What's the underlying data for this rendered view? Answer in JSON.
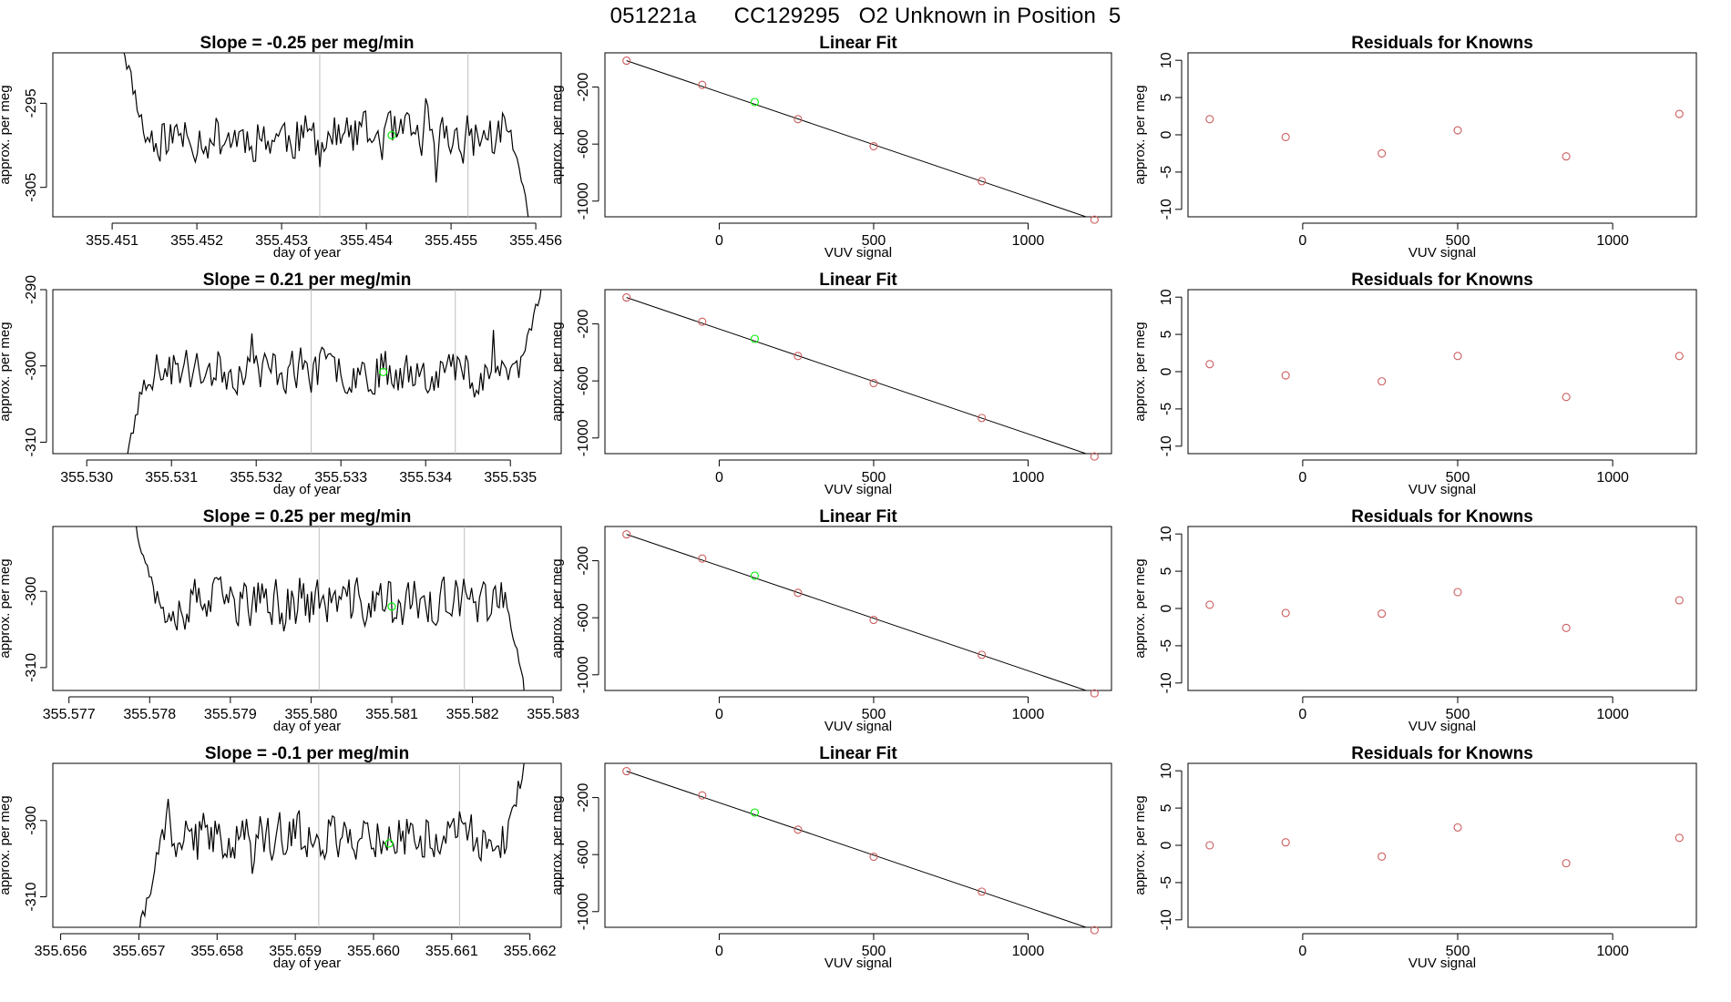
{
  "page_title": "051221a      CC129295   O2 Unknown in Position  5",
  "colors": {
    "known_point": "#cd5c5c",
    "unknown_point": "#00ee00",
    "trace": "#000000",
    "marker_line": "#bebebe",
    "frame": "#000000"
  },
  "chart_data": [
    {
      "type": "line",
      "row": 1,
      "title": "Slope =  -0.25  per meg/min",
      "xlabel": "day of year",
      "ylabel": "approx. per meg",
      "xlim": [
        355.4503,
        355.4563
      ],
      "ylim": [
        -308.5,
        -289
      ],
      "x_ticks": [
        "355.451",
        "355.452",
        "355.453",
        "355.454",
        "355.455",
        "355.456"
      ],
      "x_tick_values": [
        355.451,
        355.452,
        355.453,
        355.454,
        355.455,
        355.456
      ],
      "y_ticks": [
        "-295",
        "-305"
      ],
      "y_tick_values": [
        -295,
        -305
      ],
      "y_range_pts": [
        -301.5,
        -296
      ],
      "series": [
        {
          "x_start": 355.4511,
          "x_end": 355.456,
          "y_start": -287,
          "y_end": -312,
          "base": -299,
          "variation": 2.2,
          "points": 200,
          "seed": 11
        }
      ],
      "marker_lines_x": [
        355.45345,
        355.4552
      ],
      "unknown_point": {
        "x": 355.4543,
        "y": -298.8
      }
    },
    {
      "type": "line",
      "row": 2,
      "title": "Slope =  0.21  per meg/min",
      "xlabel": "day of year",
      "ylabel": "approx. per meg",
      "xlim": [
        355.5296,
        355.5356
      ],
      "ylim": [
        -311.5,
        -290
      ],
      "x_ticks": [
        "355.530",
        "355.531",
        "355.532",
        "355.533",
        "355.534",
        "355.535"
      ],
      "x_tick_values": [
        355.53,
        355.531,
        355.532,
        355.533,
        355.534,
        355.535
      ],
      "y_ticks": [
        "-290",
        "-300",
        "-310"
      ],
      "y_tick_values": [
        -290,
        -300,
        -310
      ],
      "y_range_pts": [
        -303,
        -297.5
      ],
      "series": [
        {
          "x_start": 355.5304,
          "x_end": 355.5354,
          "y_start": -316,
          "y_end": -288,
          "base": -300.5,
          "variation": 2.3,
          "points": 200,
          "seed": 23
        }
      ],
      "marker_lines_x": [
        355.53265,
        355.53435
      ],
      "unknown_point": {
        "x": 355.5335,
        "y": -300.8
      }
    },
    {
      "type": "line",
      "row": 3,
      "title": "Slope =  0.25  per meg/min",
      "xlabel": "day of year",
      "ylabel": "approx. per meg",
      "xlim": [
        355.5768,
        355.5831
      ],
      "ylim": [
        -313,
        -291.5
      ],
      "x_ticks": [
        "355.577",
        "355.578",
        "355.579",
        "355.580",
        "355.581",
        "355.582",
        "355.583"
      ],
      "x_tick_values": [
        355.577,
        355.578,
        355.579,
        355.58,
        355.581,
        355.582,
        355.583
      ],
      "y_ticks": [
        "-300",
        "-310"
      ],
      "y_tick_values": [
        -300,
        -310
      ],
      "y_range_pts": [
        -304.5,
        -298.5
      ],
      "series": [
        {
          "x_start": 355.5778,
          "x_end": 355.5827,
          "y_start": -290,
          "y_end": -316,
          "base": -301.5,
          "variation": 2.5,
          "points": 200,
          "seed": 37
        }
      ],
      "marker_lines_x": [
        355.5801,
        355.5819
      ],
      "unknown_point": {
        "x": 355.581,
        "y": -302.0
      }
    },
    {
      "type": "line",
      "row": 4,
      "title": "Slope =  -0.1  per meg/min",
      "xlabel": "day of year",
      "ylabel": "approx. per meg",
      "xlim": [
        355.6559,
        355.6624
      ],
      "ylim": [
        -314,
        -292.5
      ],
      "x_ticks": [
        "355.656",
        "355.657",
        "355.658",
        "355.659",
        "355.660",
        "355.661",
        "355.662"
      ],
      "x_tick_values": [
        355.656,
        355.657,
        355.658,
        355.659,
        355.66,
        355.661,
        355.662
      ],
      "y_ticks": [
        "-300",
        "-310"
      ],
      "y_tick_values": [
        -300,
        -310
      ],
      "y_range_pts": [
        -305,
        -299
      ],
      "series": [
        {
          "x_start": 355.657,
          "x_end": 355.662,
          "y_start": -315,
          "y_end": -290,
          "base": -302,
          "variation": 2.4,
          "points": 200,
          "seed": 41
        }
      ],
      "marker_lines_x": [
        355.6593,
        355.6611
      ],
      "unknown_point": {
        "x": 355.6602,
        "y": -303.0
      }
    },
    {
      "type": "scatter",
      "row": 1,
      "title": "Linear Fit",
      "xlabel": "VUV signal",
      "ylabel": "approx. per meg",
      "xlim": [
        -370,
        1270
      ],
      "ylim": [
        -1110,
        40
      ],
      "x_ticks": [
        "0",
        "500",
        "1000"
      ],
      "x_tick_values": [
        0,
        500,
        1000
      ],
      "y_ticks": [
        "-200",
        "-600",
        "-1000"
      ],
      "y_tick_values": [
        -200,
        -600,
        -1000
      ],
      "known_points": {
        "x": [
          -300,
          -55,
          255,
          500,
          850,
          1215
        ],
        "y": [
          -15,
          -185,
          -425,
          -615,
          -860,
          -1130
        ]
      },
      "unknown_point": {
        "x": 115,
        "y": -305
      },
      "fit_line": {
        "x": [
          -300,
          1215
        ],
        "y": [
          -15,
          -1130
        ]
      }
    },
    {
      "type": "scatter",
      "row": 2,
      "title": "Linear Fit",
      "xlabel": "VUV signal",
      "ylabel": "approx. per meg",
      "xlim": [
        -370,
        1270
      ],
      "ylim": [
        -1110,
        40
      ],
      "x_ticks": [
        "0",
        "500",
        "1000"
      ],
      "x_tick_values": [
        0,
        500,
        1000
      ],
      "y_ticks": [
        "-200",
        "-600",
        "-1000"
      ],
      "y_tick_values": [
        -200,
        -600,
        -1000
      ],
      "known_points": {
        "x": [
          -300,
          -55,
          255,
          500,
          850,
          1215
        ],
        "y": [
          -15,
          -185,
          -425,
          -615,
          -860,
          -1130
        ]
      },
      "unknown_point": {
        "x": 115,
        "y": -305
      },
      "fit_line": {
        "x": [
          -300,
          1215
        ],
        "y": [
          -15,
          -1130
        ]
      }
    },
    {
      "type": "scatter",
      "row": 3,
      "title": "Linear Fit",
      "xlabel": "VUV signal",
      "ylabel": "approx. per meg",
      "xlim": [
        -370,
        1270
      ],
      "ylim": [
        -1110,
        40
      ],
      "x_ticks": [
        "0",
        "500",
        "1000"
      ],
      "x_tick_values": [
        0,
        500,
        1000
      ],
      "y_ticks": [
        "-200",
        "-600",
        "-1000"
      ],
      "y_tick_values": [
        -200,
        -600,
        -1000
      ],
      "known_points": {
        "x": [
          -300,
          -55,
          255,
          500,
          850,
          1215
        ],
        "y": [
          -15,
          -185,
          -425,
          -615,
          -860,
          -1130
        ]
      },
      "unknown_point": {
        "x": 115,
        "y": -305
      },
      "fit_line": {
        "x": [
          -300,
          1215
        ],
        "y": [
          -15,
          -1130
        ]
      }
    },
    {
      "type": "scatter",
      "row": 4,
      "title": "Linear Fit",
      "xlabel": "VUV signal",
      "ylabel": "approx. per meg",
      "xlim": [
        -370,
        1270
      ],
      "ylim": [
        -1110,
        40
      ],
      "x_ticks": [
        "0",
        "500",
        "1000"
      ],
      "x_tick_values": [
        0,
        500,
        1000
      ],
      "y_ticks": [
        "-200",
        "-600",
        "-1000"
      ],
      "y_tick_values": [
        -200,
        -600,
        -1000
      ],
      "known_points": {
        "x": [
          -300,
          -55,
          255,
          500,
          850,
          1215
        ],
        "y": [
          -15,
          -185,
          -425,
          -615,
          -860,
          -1130
        ]
      },
      "unknown_point": {
        "x": 115,
        "y": -305
      },
      "fit_line": {
        "x": [
          -300,
          1215
        ],
        "y": [
          -15,
          -1130
        ]
      }
    },
    {
      "type": "scatter",
      "row": 1,
      "title": "Residuals for Knowns",
      "xlabel": "VUV signal",
      "ylabel": "approx. per meg",
      "xlim": [
        -370,
        1270
      ],
      "ylim": [
        -11,
        11
      ],
      "x_ticks": [
        "0",
        "500",
        "1000"
      ],
      "x_tick_values": [
        0,
        500,
        1000
      ],
      "y_ticks": [
        "10",
        "5",
        "0",
        "-5",
        "-10"
      ],
      "y_tick_values": [
        10,
        5,
        0,
        -5,
        -10
      ],
      "known_points": {
        "x": [
          -300,
          -55,
          255,
          500,
          850,
          1215
        ],
        "y": [
          2.1,
          -0.3,
          -2.5,
          0.6,
          -2.9,
          2.8
        ]
      }
    },
    {
      "type": "scatter",
      "row": 2,
      "title": "Residuals for Knowns",
      "xlabel": "VUV signal",
      "ylabel": "approx. per meg",
      "xlim": [
        -370,
        1270
      ],
      "ylim": [
        -11,
        11
      ],
      "x_ticks": [
        "0",
        "500",
        "1000"
      ],
      "x_tick_values": [
        0,
        500,
        1000
      ],
      "y_ticks": [
        "10",
        "5",
        "0",
        "-5",
        "-10"
      ],
      "y_tick_values": [
        10,
        5,
        0,
        -5,
        -10
      ],
      "known_points": {
        "x": [
          -300,
          -55,
          255,
          500,
          850,
          1215
        ],
        "y": [
          1.0,
          -0.5,
          -1.3,
          2.1,
          -3.4,
          2.1
        ]
      }
    },
    {
      "type": "scatter",
      "row": 3,
      "title": "Residuals for Knowns",
      "xlabel": "VUV signal",
      "ylabel": "approx. per meg",
      "xlim": [
        -370,
        1270
      ],
      "ylim": [
        -11,
        11
      ],
      "x_ticks": [
        "0",
        "500",
        "1000"
      ],
      "x_tick_values": [
        0,
        500,
        1000
      ],
      "y_ticks": [
        "10",
        "5",
        "0",
        "-5",
        "-10"
      ],
      "y_tick_values": [
        10,
        5,
        0,
        -5,
        -10
      ],
      "known_points": {
        "x": [
          -300,
          -55,
          255,
          500,
          850,
          1215
        ],
        "y": [
          0.5,
          -0.6,
          -0.7,
          2.2,
          -2.6,
          1.1
        ]
      }
    },
    {
      "type": "scatter",
      "row": 4,
      "title": "Residuals for Knowns",
      "xlabel": "VUV signal",
      "ylabel": "approx. per meg",
      "xlim": [
        -370,
        1270
      ],
      "ylim": [
        -11,
        11
      ],
      "x_ticks": [
        "0",
        "500",
        "1000"
      ],
      "x_tick_values": [
        0,
        500,
        1000
      ],
      "y_ticks": [
        "10",
        "5",
        "0",
        "-5",
        "-10"
      ],
      "y_tick_values": [
        10,
        5,
        0,
        -5,
        -10
      ],
      "known_points": {
        "x": [
          -300,
          -55,
          255,
          500,
          850,
          1215
        ],
        "y": [
          0.0,
          0.4,
          -1.5,
          2.4,
          -2.4,
          1.0
        ]
      }
    }
  ]
}
